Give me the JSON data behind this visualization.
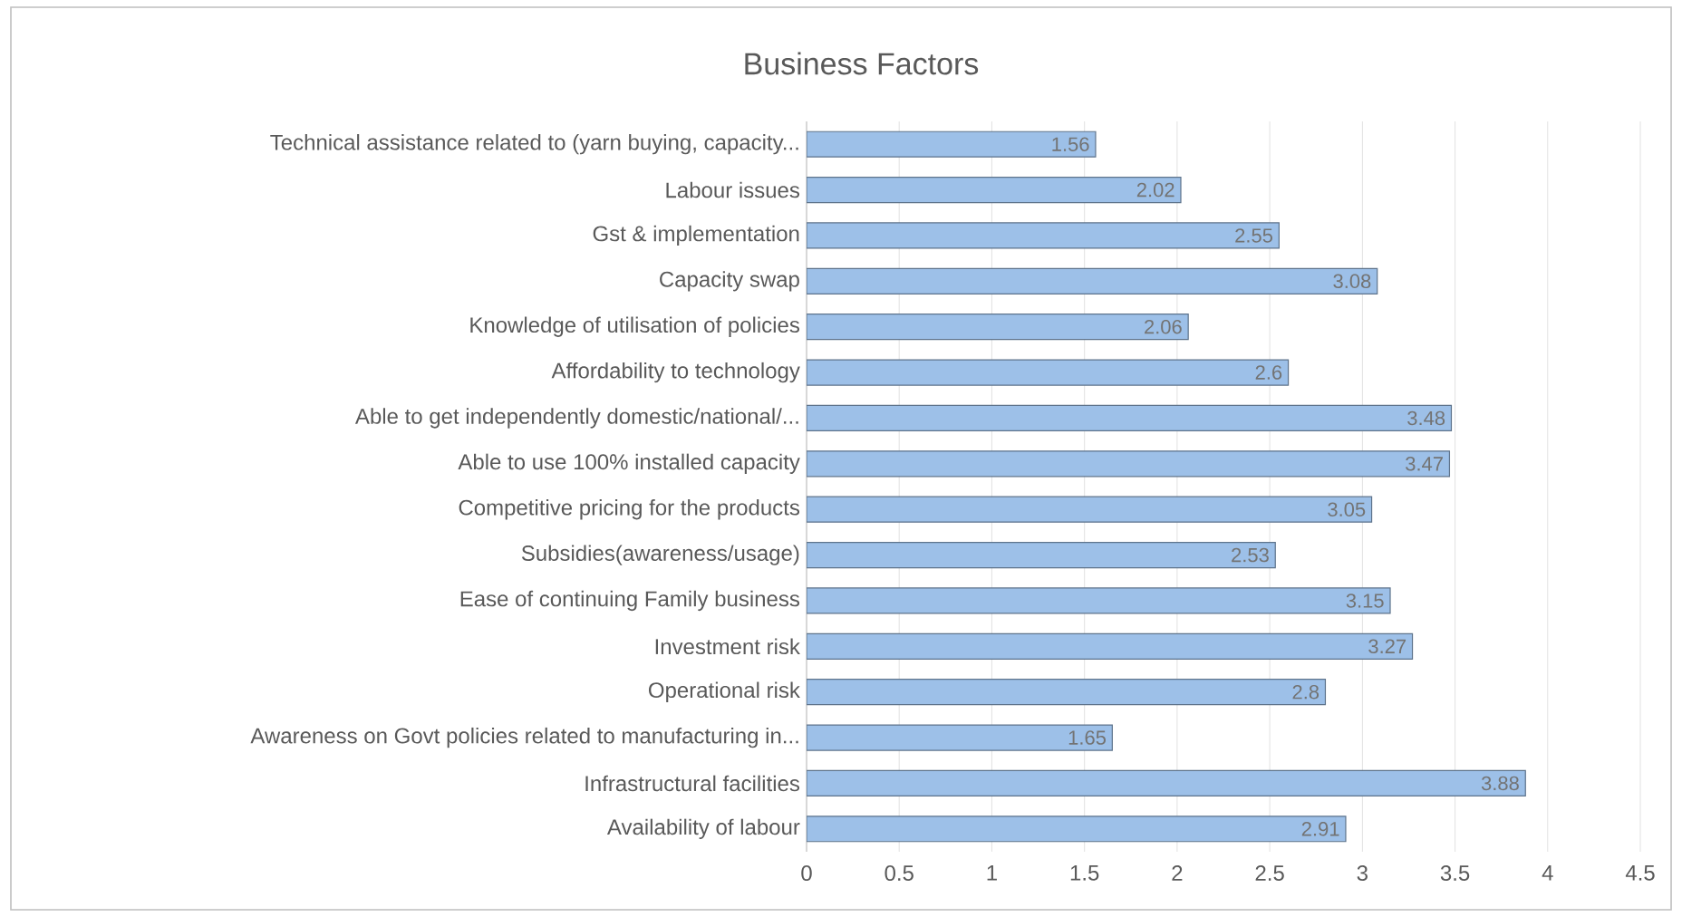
{
  "chart_data": {
    "type": "bar",
    "orientation": "horizontal",
    "title": "Business Factors",
    "categories": [
      "Technical assistance related to (yarn buying, capacity...",
      "Labour issues",
      "Gst & implementation",
      "Capacity swap",
      "Knowledge of utilisation of policies",
      "Affordability to technology",
      "Able to get independently domestic/national/...",
      "Able to use 100% installed capacity",
      "Competitive pricing for the products",
      "Subsidies(awareness/usage)",
      "Ease of continuing  Family business",
      "Investment  risk",
      "Operational risk",
      "Awareness on Govt policies related to  manufacturing in...",
      "Infrastructural facilities",
      "Availability of labour"
    ],
    "values": [
      1.56,
      2.02,
      2.55,
      3.08,
      2.06,
      2.6,
      3.48,
      3.47,
      3.05,
      2.53,
      3.15,
      3.27,
      2.8,
      1.65,
      3.88,
      2.91
    ],
    "color": "#9dc0e8",
    "xlim": [
      0,
      4.5
    ],
    "xticks": [
      0,
      0.5,
      1,
      1.5,
      2,
      2.5,
      3,
      3.5,
      4,
      4.5
    ],
    "grid": "x",
    "data_labels": true
  }
}
